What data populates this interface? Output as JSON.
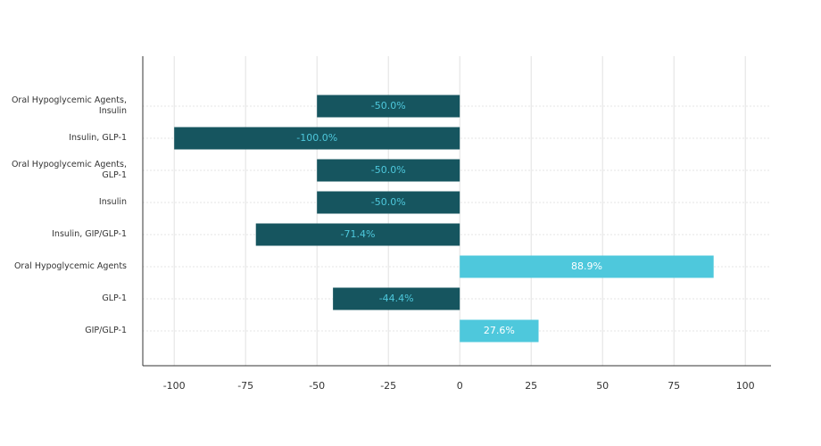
{
  "chart_data": {
    "type": "barh",
    "categories": [
      "Oral Hypoglycemic Agents, Insulin",
      "Insulin, GLP-1",
      "Oral Hypoglycemic Agents, GLP-1",
      "Insulin",
      "Insulin, GIP/GLP-1",
      "Oral Hypoglycemic Agents",
      "GLP-1",
      "GIP/GLP-1"
    ],
    "values": [
      -50.0,
      -100.0,
      -50.0,
      -50.0,
      -71.4,
      88.9,
      -44.4,
      27.6
    ],
    "value_labels": [
      "-50.0%",
      "-100.0%",
      "-50.0%",
      "-50.0%",
      "-71.4%",
      "88.9%",
      "-44.4%",
      "27.6%"
    ],
    "colors": [
      "#16555f",
      "#16555f",
      "#16555f",
      "#16555f",
      "#16555f",
      "#4ec8dc",
      "#16555f",
      "#4ec8dc"
    ],
    "label_colors": [
      "#4ec8dc",
      "#4ec8dc",
      "#4ec8dc",
      "#4ec8dc",
      "#4ec8dc",
      "#ffffff",
      "#4ec8dc",
      "#ffffff"
    ],
    "xlim": [
      -111,
      109
    ],
    "xticks": [
      -100,
      -75,
      -50,
      -25,
      0,
      25,
      50,
      75,
      100
    ],
    "grid": true
  }
}
